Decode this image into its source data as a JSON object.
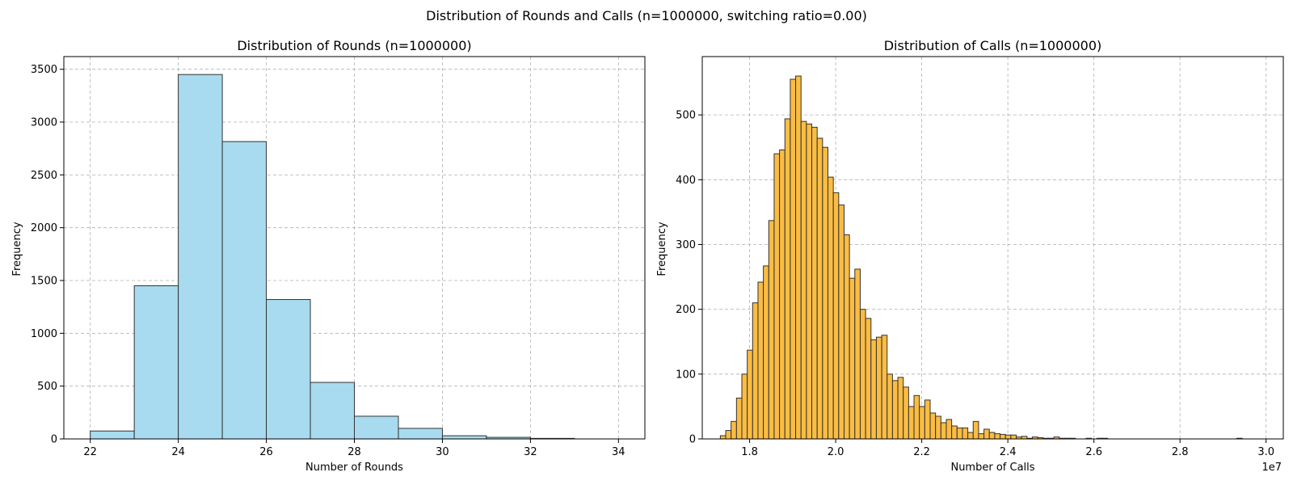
{
  "suptitle": "Distribution of Rounds and Calls (n=1000000, switching ratio=0.00)",
  "chart_data": [
    {
      "type": "bar",
      "subtype": "histogram",
      "title": "Distribution of Rounds (n=1000000)",
      "xlabel": "Number of Rounds",
      "ylabel": "Frequency",
      "bin_edges": [
        22,
        23,
        24,
        25,
        26,
        27,
        28,
        29,
        30,
        31,
        32,
        33,
        34
      ],
      "values": [
        75,
        1450,
        3450,
        2815,
        1320,
        535,
        215,
        100,
        30,
        15,
        5,
        0
      ],
      "xlim": [
        21.4,
        34.6
      ],
      "ylim": [
        0,
        3620
      ],
      "xticks": [
        22,
        24,
        26,
        28,
        30,
        32,
        34
      ],
      "yticks": [
        0,
        500,
        1000,
        1500,
        2000,
        2500,
        3000,
        3500
      ],
      "bar_color": "#a8dbef",
      "edge_color": "#333333",
      "grid": true
    },
    {
      "type": "bar",
      "subtype": "histogram",
      "title": "Distribution of Calls (n=1000000)",
      "xlabel": "Number of Calls",
      "ylabel": "Frequency",
      "x_offset_label": "1e7",
      "bin_start": 1.732,
      "bin_width": 0.0125,
      "values": [
        5,
        13,
        27,
        63,
        100,
        137,
        210,
        242,
        267,
        337,
        440,
        446,
        494,
        555,
        560,
        490,
        486,
        481,
        464,
        450,
        404,
        380,
        361,
        315,
        248,
        262,
        200,
        186,
        153,
        157,
        160,
        100,
        90,
        95,
        80,
        50,
        67,
        50,
        60,
        40,
        35,
        25,
        30,
        20,
        17,
        17,
        10,
        27,
        8,
        15,
        10,
        8,
        7,
        6,
        6,
        3,
        4,
        1,
        3,
        2,
        1,
        1,
        3,
        1,
        1,
        1,
        0,
        0,
        1,
        0,
        1,
        1,
        0,
        0,
        0,
        0,
        0,
        0,
        0,
        0,
        0,
        0,
        0,
        0,
        0,
        0,
        0,
        0,
        0,
        0,
        0,
        0,
        0,
        0,
        0,
        0,
        1
      ],
      "xlim": [
        1.69,
        3.04
      ],
      "ylim": [
        0,
        590
      ],
      "xticks": [
        1.8,
        2.0,
        2.2,
        2.4,
        2.6,
        2.8,
        3.0
      ],
      "xtick_labels": [
        "1.8",
        "2.0",
        "2.2",
        "2.4",
        "2.6",
        "2.8",
        "3.0"
      ],
      "yticks": [
        0,
        100,
        200,
        300,
        400,
        500
      ],
      "bar_color": "#fbbc42",
      "edge_color": "#333333",
      "grid": true
    }
  ]
}
